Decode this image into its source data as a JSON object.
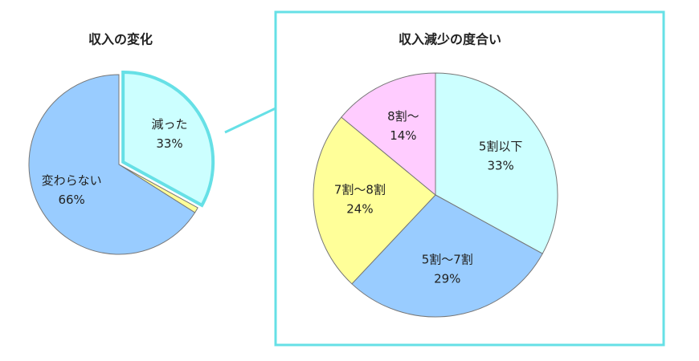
{
  "chart_data": [
    {
      "type": "pie",
      "title": "収入の変化",
      "categories": [
        "減った",
        null,
        "変わらない"
      ],
      "values": [
        33,
        1,
        66
      ],
      "value_labels": [
        "33%",
        null,
        "66%"
      ],
      "colors": [
        "#ccffff",
        "#ffff99",
        "#99ccff"
      ]
    },
    {
      "type": "pie",
      "title": "収入減少の度合い",
      "categories": [
        "5割以下",
        "5割～7割",
        "7割～8割",
        "8割～"
      ],
      "values": [
        33,
        29,
        24,
        14
      ],
      "value_labels": [
        "33%",
        "29%",
        "24%",
        "14%"
      ],
      "colors": [
        "#ccffff",
        "#99ccff",
        "#ffff99",
        "#ffccff"
      ]
    }
  ]
}
